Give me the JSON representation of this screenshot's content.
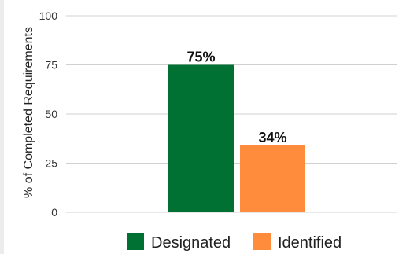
{
  "chart_data": {
    "type": "bar",
    "categories": [
      "Designated",
      "Identified"
    ],
    "values": [
      75,
      34
    ],
    "data_labels": [
      "75%",
      "34%"
    ],
    "ylabel": "% of Completed Requirements",
    "ylim": [
      0,
      100
    ],
    "yticks": [
      0,
      25,
      50,
      75,
      100
    ],
    "grid": true,
    "legend": {
      "position": "bottom",
      "entries": [
        {
          "label": "Designated",
          "color": "#007033"
        },
        {
          "label": "Identified",
          "color": "#ff8c3d"
        }
      ]
    }
  }
}
